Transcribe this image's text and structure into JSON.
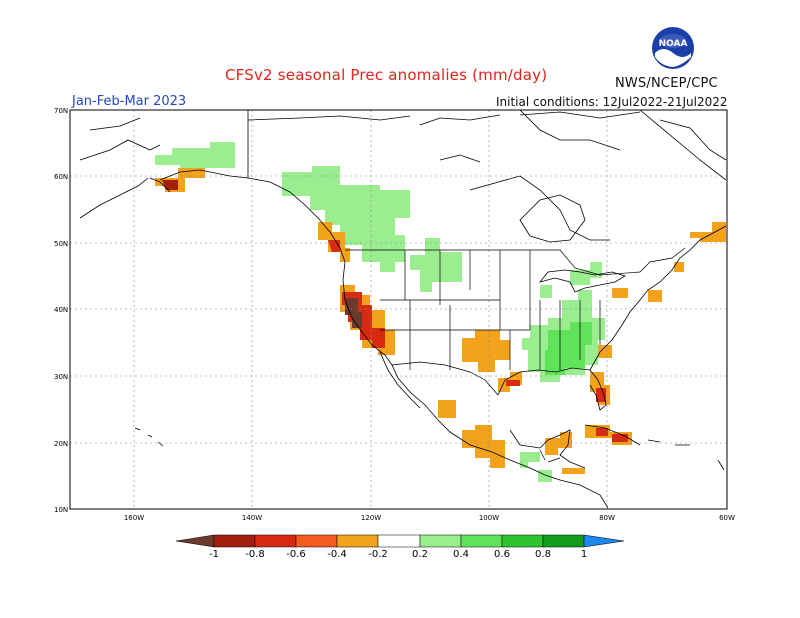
{
  "header": {
    "title": "CFSv2 seasonal Prec anomalies (mm/day)",
    "agency": "NWS/NCEP/CPC",
    "logo_text": "NOAA",
    "period": "Jan-Feb-Mar 2023",
    "initial_conditions": "Initial conditions: 12Jul2022-21Jul2022"
  },
  "axes": {
    "lat_labels": [
      "70N",
      "60N",
      "50N",
      "40N",
      "30N",
      "20N",
      "10N"
    ],
    "lon_labels": [
      "160W",
      "140W",
      "120W",
      "100W",
      "80W",
      "60W"
    ]
  },
  "legend": {
    "labels": [
      "-1",
      "-0.8",
      "-0.6",
      "-0.4",
      "-0.2",
      "0.2",
      "0.4",
      "0.6",
      "0.8",
      "1"
    ],
    "colors": [
      "#6b3a2a",
      "#a31e0d",
      "#d62a12",
      "#f55a1e",
      "#f2a31b",
      "#ffffff",
      "#9bee8f",
      "#5fe35a",
      "#2fc42f",
      "#129d1c",
      "#1f86ee"
    ]
  },
  "colors": {
    "title": "#e0241c",
    "period": "#2446c8",
    "grid": "#888888",
    "outline": "#000000"
  }
}
